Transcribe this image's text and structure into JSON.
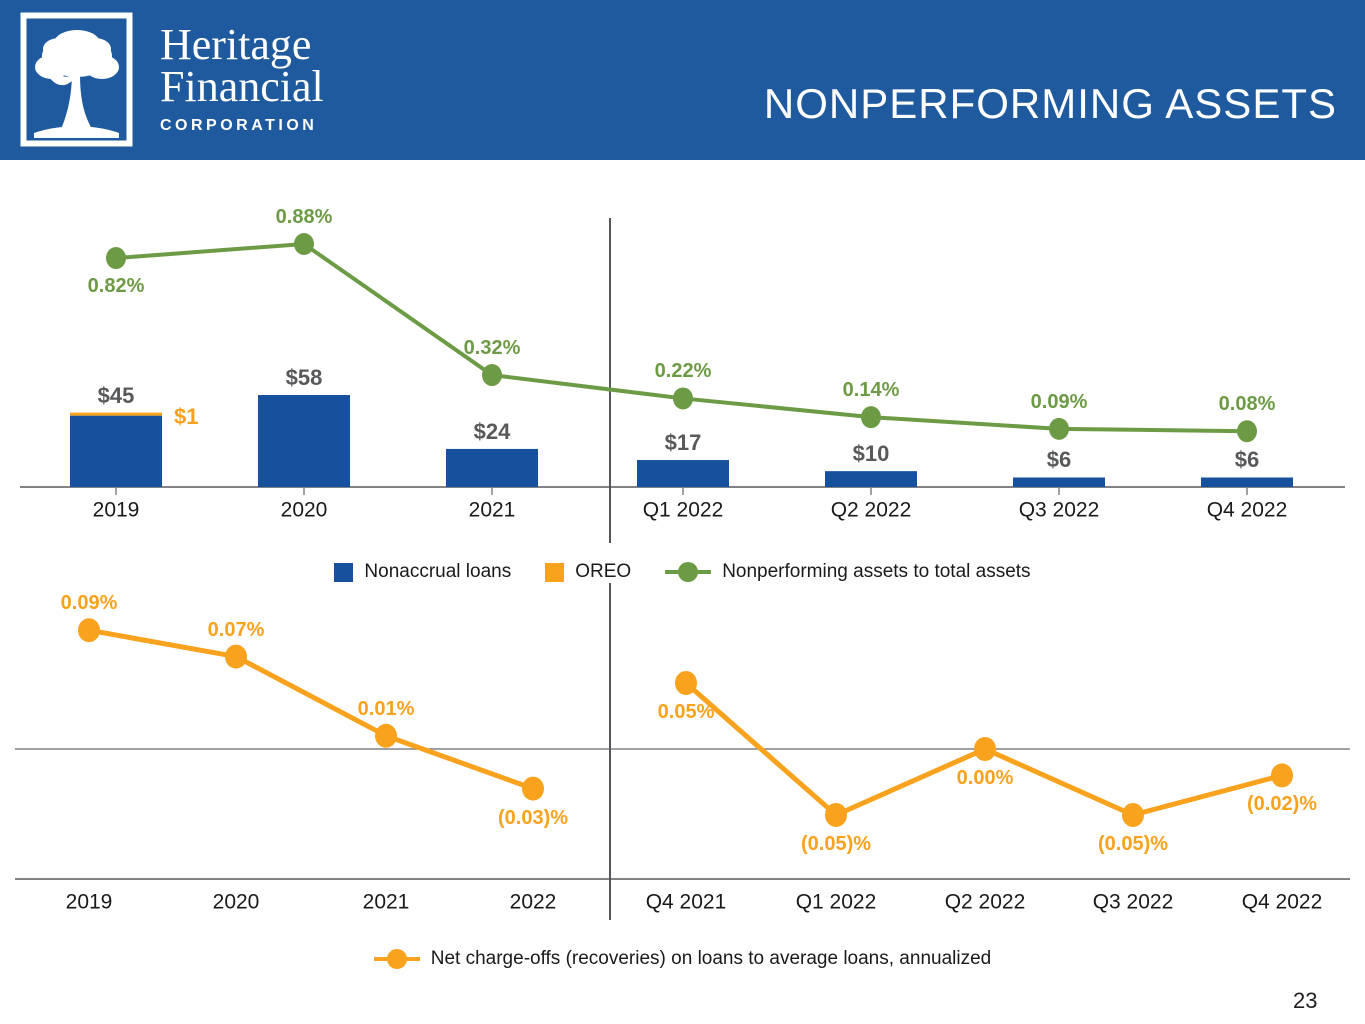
{
  "header": {
    "logo_line1": "Heritage",
    "logo_line2": "Financial",
    "logo_line3": "CORPORATION",
    "title": "NONPERFORMING ASSETS"
  },
  "page_number": "23",
  "colors": {
    "header_bg": "#1E5A9D",
    "bar_blue": "#17519E",
    "oreo_orange": "#F8A21D",
    "npa_green": "#6D9B45",
    "value_gray": "#58595B",
    "axis_gray": "#808285",
    "divider_gray": "#54565A",
    "label_black": "#1A1A1A"
  },
  "chart_data": [
    {
      "type": "bar",
      "categories": [
        "2019",
        "2020",
        "2021",
        "Q1 2022",
        "Q2 2022",
        "Q3 2022",
        "Q4 2022"
      ],
      "series": [
        {
          "name": "Nonaccrual loans",
          "type": "bar",
          "color": "#17519E",
          "values": [
            45,
            58,
            24,
            17,
            10,
            6,
            6
          ],
          "labels": [
            "$45",
            "$58",
            "$24",
            "$17",
            "$10",
            "$6",
            "$6"
          ]
        },
        {
          "name": "OREO",
          "type": "bar-stacked-cap",
          "color": "#F8A21D",
          "values": [
            1,
            0,
            0,
            0,
            0,
            0,
            0
          ],
          "labels": [
            "$1",
            "",
            "",
            "",
            "",
            "",
            ""
          ]
        },
        {
          "name": "Nonperforming assets to total assets",
          "type": "line",
          "color": "#6D9B45",
          "values": [
            0.82,
            0.88,
            0.32,
            0.22,
            0.14,
            0.09,
            0.08
          ],
          "labels": [
            "0.82%",
            "0.88%",
            "0.32%",
            "0.22%",
            "0.14%",
            "0.09%",
            "0.08%"
          ]
        }
      ],
      "divider_between": [
        "2021",
        "Q1 2022"
      ],
      "legend_position": "bottom",
      "grid": false
    },
    {
      "type": "line",
      "categories": [
        "2019",
        "2020",
        "2021",
        "2022",
        "Q4 2021",
        "Q1 2022",
        "Q2 2022",
        "Q3 2022",
        "Q4 2022"
      ],
      "series": [
        {
          "name": "Net charge-offs (recoveries) on loans to average loans, annualized",
          "type": "line",
          "color": "#F8A21D",
          "values": [
            0.09,
            0.07,
            0.01,
            -0.03,
            0.05,
            -0.05,
            0.0,
            -0.05,
            -0.02
          ],
          "labels": [
            "0.09%",
            "0.07%",
            "0.01%",
            "(0.03)%",
            "0.05%",
            "(0.05)%",
            "0.00%",
            "(0.05)%",
            "(0.02)%"
          ],
          "segments": [
            [
              0,
              3
            ],
            [
              4,
              8
            ]
          ]
        }
      ],
      "divider_between": [
        "2022",
        "Q4 2021"
      ],
      "zero_line": true,
      "legend_position": "bottom",
      "grid": false
    }
  ]
}
